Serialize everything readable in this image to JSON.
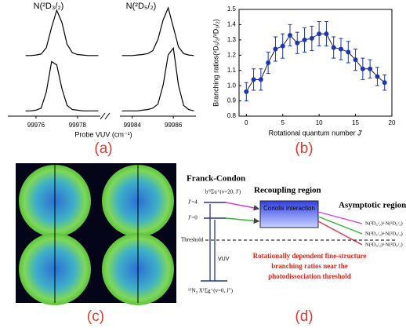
{
  "panel_labels": [
    "(a)",
    "(b)",
    "(c)",
    "(d)"
  ],
  "chart_data": [
    {
      "type": "line",
      "xlabel": "Probe VUV (cm⁻¹)",
      "annotations": [
        "N(²D₃/₂)",
        "N(²D₅/₂)"
      ],
      "color": "#000000",
      "x": [
        99975.5,
        99975.75,
        99976,
        99976.25,
        99976.5,
        99976.75,
        99977,
        99977.25,
        99977.5,
        99977.75,
        99978,
        99978.25,
        99978.5,
        99978.75,
        99979,
        99983.5,
        99983.75,
        99984,
        99984.25,
        99984.5,
        99984.75,
        99985,
        99985.25,
        99985.5,
        99985.75,
        99986,
        99986.25,
        99986.5,
        99986.75,
        99987
      ],
      "xlim": [
        [
          99975.4,
          99979.1
        ],
        [
          99983.4,
          99987.1
        ]
      ],
      "xticks": [
        99976,
        99978,
        99984,
        99986
      ],
      "series": [
        {
          "values": [
            0.02,
            0.02,
            0.03,
            0.05,
            0.18,
            0.6,
            0.95,
            0.7,
            0.25,
            0.08,
            0.04,
            0.03,
            0.02,
            0.02,
            0.02,
            0.02,
            0.02,
            0.02,
            0.03,
            0.04,
            0.06,
            0.12,
            0.35,
            0.75,
            1.0,
            0.6,
            0.2,
            0.06,
            0.03,
            0.02
          ]
        },
        {
          "values": [
            0.02,
            0.02,
            0.03,
            0.06,
            0.3,
            0.75,
            0.7,
            0.35,
            0.1,
            0.04,
            0.03,
            0.02,
            0.02,
            0.02,
            0.02,
            0.02,
            0.02,
            0.02,
            0.02,
            0.03,
            0.04,
            0.06,
            0.12,
            0.4,
            0.85,
            0.95,
            0.4,
            0.1,
            0.04,
            0.02
          ]
        }
      ]
    },
    {
      "type": "scatter",
      "xlabel": "Rotational quantum number J′",
      "ylabel": "Branching ratios(²D₅/₂/²D₃/₂)",
      "color": "#1a35b5",
      "x": [
        0,
        1,
        2,
        3,
        4,
        5,
        6,
        7,
        8,
        9,
        10,
        11,
        12,
        13,
        14,
        15,
        16,
        17,
        18,
        19
      ],
      "values": [
        0.96,
        1.04,
        1.04,
        1.15,
        1.24,
        1.26,
        1.33,
        1.28,
        1.3,
        1.31,
        1.34,
        1.34,
        1.25,
        1.24,
        1.22,
        1.17,
        1.11,
        1.11,
        1.06,
        1.02
      ],
      "errors": [
        0.06,
        0.07,
        0.07,
        0.07,
        0.08,
        0.08,
        0.07,
        0.07,
        0.08,
        0.08,
        0.08,
        0.08,
        0.07,
        0.07,
        0.07,
        0.07,
        0.07,
        0.06,
        0.06,
        0.05
      ],
      "xlim": [
        -1,
        20
      ],
      "xticks": [
        0,
        5,
        10,
        15,
        20
      ],
      "ylim": [
        0.8,
        1.5
      ],
      "yticks": [
        0.8,
        0.9,
        {
          "value": 1,
          "label": "1.0"
        },
        1.1,
        1.2,
        1.3,
        1.4,
        1.5
      ]
    }
  ],
  "diagram": {
    "headings": [
      "Franck-Condon",
      "Recoupling region",
      "Asymptotic region"
    ],
    "box": "Coriolis interaction",
    "upper_state": "b′¹Σu⁺(v=20, J′)",
    "levels": [
      "J′=4",
      "J′=0"
    ],
    "threshold": "Threshold",
    "excitation": "VUV",
    "ground_state": "¹⁵N₂ X¹Σg⁺(v=0, J″)",
    "channels": [
      "N(²D₅/₂)+N(²D₅/₂)",
      "N(²D₅/₂)+N(²D₃/₂)",
      "N(²D₃/₂)+N(²D₃/₂)"
    ],
    "conclusion": [
      "Rotationally dependent fine-structure",
      "branching ratios near the",
      "photodissociation threshold"
    ]
  }
}
